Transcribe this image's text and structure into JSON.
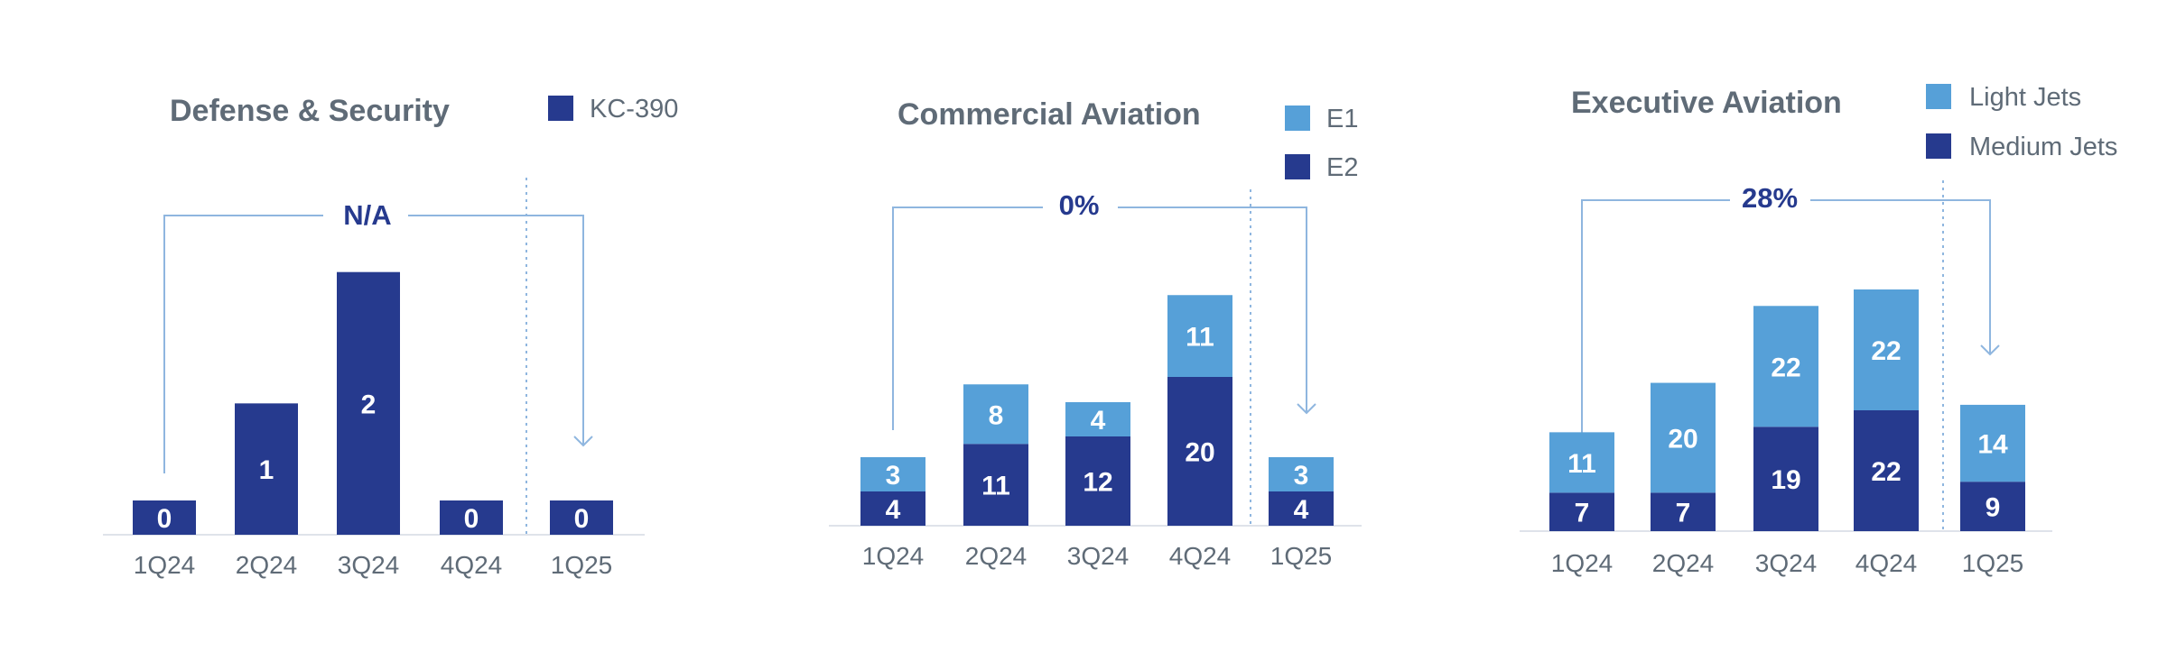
{
  "colors": {
    "dark_blue": "#263a8e",
    "light_blue": "#56a0d8",
    "bracket": "#8fb6df",
    "axis": "#dfe3ea"
  },
  "chart_data": [
    {
      "type": "bar",
      "title": "Defense & Security",
      "categories": [
        "1Q24",
        "2Q24",
        "3Q24",
        "4Q24",
        "1Q25"
      ],
      "series": [
        {
          "name": "KC-390",
          "color": "#263a8e",
          "values": [
            0,
            1,
            2,
            0,
            0
          ]
        }
      ],
      "ylim": [
        0,
        2.3
      ],
      "comparison_label": "N/A",
      "legend_position": "top-right",
      "grid": false
    },
    {
      "type": "bar",
      "stacked": true,
      "title": "Commercial Aviation",
      "categories": [
        "1Q24",
        "2Q24",
        "3Q24",
        "4Q24",
        "1Q25"
      ],
      "series": [
        {
          "name": "E1",
          "color": "#56a0d8",
          "values": [
            3,
            8,
            4,
            11,
            3
          ]
        },
        {
          "name": "E2",
          "color": "#263a8e",
          "values": [
            4,
            11,
            12,
            20,
            4
          ]
        }
      ],
      "ylim": [
        0,
        40
      ],
      "comparison_label": "0%",
      "legend_position": "top-right",
      "grid": false
    },
    {
      "type": "bar",
      "stacked": true,
      "title": "Executive Aviation",
      "categories": [
        "1Q24",
        "2Q24",
        "3Q24",
        "4Q24",
        "1Q25"
      ],
      "series": [
        {
          "name": "Light Jets",
          "color": "#56a0d8",
          "values": [
            11,
            20,
            22,
            22,
            14
          ]
        },
        {
          "name": "Medium Jets",
          "color": "#263a8e",
          "values": [
            7,
            7,
            19,
            22,
            9
          ]
        }
      ],
      "ylim": [
        0,
        55
      ],
      "comparison_label": "28%",
      "legend_position": "top-right",
      "grid": false
    }
  ]
}
